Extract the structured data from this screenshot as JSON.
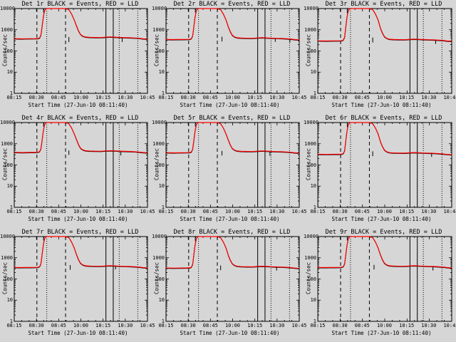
{
  "window": {
    "background": "#d6d6d6"
  },
  "colors": {
    "events": "#000000",
    "lld": "#ff0000",
    "axis": "#000000"
  },
  "chart_data": {
    "type": "line",
    "layout": "3x3-grid",
    "shared": {
      "xlabel": "Start Time (27-Jun-10 08:11:40)",
      "ylabel": "Counts/sec",
      "x_ticks": [
        "08:15",
        "08:30",
        "08:45",
        "10:00",
        "10:15",
        "10:30",
        "10:45"
      ],
      "y_ticks": [
        "1",
        "10",
        "100",
        "1000",
        "10000"
      ],
      "ylim": [
        1,
        10000
      ],
      "yscale": "log",
      "grid": "off",
      "legend": "in-title",
      "series_meta": [
        {
          "name": "Events",
          "color": "#000000"
        },
        {
          "name": "LLD",
          "color": "#ff0000"
        }
      ],
      "vlines": [
        {
          "x": 0.17,
          "style": "dashed"
        },
        {
          "x": 0.244,
          "style": "dotted"
        },
        {
          "x": 0.385,
          "style": "dashed"
        },
        {
          "x": 0.688,
          "style": "solid"
        },
        {
          "x": 0.743,
          "style": "solid"
        },
        {
          "x": 0.788,
          "style": "dotted"
        },
        {
          "x": 0.927,
          "style": "dotted"
        }
      ],
      "scale_threshold": 1500,
      "black_factor": 0.955,
      "shape": [
        [
          0.0,
          380
        ],
        [
          0.03,
          376
        ],
        [
          0.06,
          374
        ],
        [
          0.09,
          377
        ],
        [
          0.12,
          379
        ],
        [
          0.15,
          380
        ],
        [
          0.175,
          384
        ],
        [
          0.19,
          410
        ],
        [
          0.2,
          560
        ],
        [
          0.21,
          1600
        ],
        [
          0.218,
          4000
        ],
        [
          0.228,
          8000
        ],
        [
          0.24,
          10600
        ],
        [
          0.27,
          11400
        ],
        [
          0.32,
          11600
        ],
        [
          0.36,
          11200
        ],
        [
          0.39,
          10400
        ],
        [
          0.41,
          8800
        ],
        [
          0.43,
          5600
        ],
        [
          0.45,
          2900
        ],
        [
          0.468,
          1500
        ],
        [
          0.483,
          880
        ],
        [
          0.498,
          600
        ],
        [
          0.515,
          500
        ],
        [
          0.535,
          455
        ],
        [
          0.565,
          440
        ],
        [
          0.61,
          432
        ],
        [
          0.65,
          430
        ],
        [
          0.69,
          448
        ],
        [
          0.72,
          458
        ],
        [
          0.755,
          448
        ],
        [
          0.79,
          436
        ],
        [
          0.83,
          426
        ],
        [
          0.87,
          420
        ],
        [
          0.905,
          408
        ],
        [
          0.94,
          392
        ],
        [
          0.965,
          375
        ],
        [
          1.0,
          362
        ]
      ]
    },
    "plots": [
      {
        "det": "Det 1r",
        "title": "Det 1r BLACK = Events, RED = LLD",
        "baseline": 380,
        "scale": 1.0,
        "black_ticks": [
          [
            0.22,
            10000,
            6500
          ],
          [
            0.41,
            450,
            260
          ],
          [
            0.81,
            410,
            265
          ]
        ]
      },
      {
        "det": "Det 2r",
        "title": "Det 2r BLACK = Events, RED = LLD",
        "baseline": 350,
        "scale": 0.92,
        "black_ticks": [
          [
            0.22,
            10000,
            6500
          ],
          [
            0.42,
            470,
            280
          ],
          [
            0.82,
            400,
            270
          ],
          [
            0.93,
            390,
            255
          ]
        ]
      },
      {
        "det": "Det 3r",
        "title": "Det 3r BLACK = Events, RED = LLD",
        "baseline": 300,
        "scale": 0.79,
        "black_ticks": [
          [
            0.22,
            10000,
            6000
          ],
          [
            0.41,
            430,
            250
          ],
          [
            0.88,
            330,
            215
          ]
        ]
      },
      {
        "det": "Det 4r",
        "title": "Det 4r BLACK = Events, RED = LLD",
        "baseline": 400,
        "scale": 1.03,
        "black_ticks": [
          [
            0.22,
            10000,
            6500
          ],
          [
            0.41,
            480,
            300
          ],
          [
            0.8,
            430,
            280
          ]
        ]
      },
      {
        "det": "Det 5r",
        "title": "Det 5r BLACK = Events, RED = LLD",
        "baseline": 380,
        "scale": 1.0,
        "black_ticks": [
          [
            0.22,
            10000,
            6500
          ],
          [
            0.42,
            460,
            280
          ],
          [
            0.78,
            420,
            270
          ]
        ]
      },
      {
        "det": "Det 6r",
        "title": "Det 6r BLACK = Events, RED = LLD",
        "baseline": 330,
        "scale": 0.84,
        "black_ticks": [
          [
            0.22,
            10000,
            6000
          ],
          [
            0.41,
            440,
            260
          ],
          [
            0.85,
            380,
            240
          ]
        ]
      },
      {
        "det": "Det 7r",
        "title": "Det 7r BLACK = Events, RED = LLD",
        "baseline": 350,
        "scale": 0.92,
        "black_ticks": [
          [
            0.22,
            10000,
            6500
          ],
          [
            0.42,
            450,
            270
          ],
          [
            0.76,
            430,
            280
          ]
        ]
      },
      {
        "det": "Det 8r",
        "title": "Det 8r BLACK = Events, RED = LLD",
        "baseline": 330,
        "scale": 0.87,
        "black_ticks": [
          [
            0.22,
            10000,
            6000
          ],
          [
            0.41,
            430,
            260
          ],
          [
            0.83,
            390,
            250
          ]
        ]
      },
      {
        "det": "Det 9r",
        "title": "Det 9r BLACK = Events, RED = LLD",
        "baseline": 350,
        "scale": 0.92,
        "black_ticks": [
          [
            0.22,
            10000,
            6500
          ],
          [
            0.42,
            460,
            280
          ],
          [
            0.86,
            390,
            250
          ]
        ]
      }
    ]
  }
}
